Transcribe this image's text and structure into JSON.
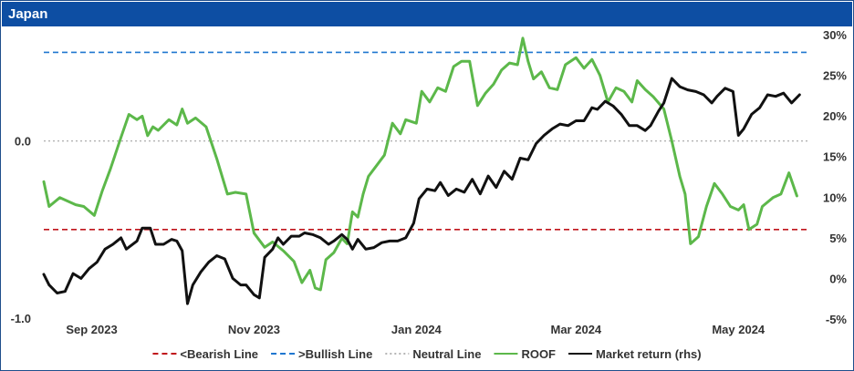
{
  "header": {
    "title": "Japan"
  },
  "colors": {
    "header_bg": "#0d4ea3",
    "bearish": "#c0141b",
    "bullish": "#1f77d0",
    "neutral": "#b5b5b5",
    "roof": "#5cb84a",
    "market": "#111111"
  },
  "chart_data": {
    "type": "line",
    "x_start": "2023-08-14",
    "x_end": "2024-05-28",
    "x_ticks": [
      {
        "label": "Sep 2023",
        "date": "2023-09-01"
      },
      {
        "label": "Nov 2023",
        "date": "2023-11-01"
      },
      {
        "label": "Jan 2024",
        "date": "2024-01-01"
      },
      {
        "label": "Mar 2024",
        "date": "2024-03-01"
      },
      {
        "label": "May 2024",
        "date": "2024-05-01"
      }
    ],
    "y_left": {
      "range": [
        -1.0,
        0.6
      ],
      "ticks": [
        "0.0",
        "-1.0"
      ],
      "tick_values": [
        0.0,
        -1.0
      ]
    },
    "y_right": {
      "range": [
        -5,
        30
      ],
      "ticks": [
        "30%",
        "25%",
        "20%",
        "15%",
        "10%",
        "5%",
        "0%",
        "-5%"
      ],
      "tick_values": [
        30,
        25,
        20,
        15,
        10,
        5,
        0,
        -5
      ]
    },
    "reference_lines": [
      {
        "name": "<Bearish Line",
        "value": -0.5,
        "axis": "left",
        "style": "dashed",
        "color": "#c0141b"
      },
      {
        "name": ">Bullish Line",
        "value": 0.5,
        "axis": "left",
        "style": "dashed",
        "color": "#1f77d0"
      },
      {
        "name": "Neutral Line",
        "value": 0.0,
        "axis": "left",
        "style": "dotted",
        "color": "#b5b5b5"
      }
    ],
    "series": [
      {
        "name": "ROOF",
        "axis": "left",
        "color": "#5cb84a",
        "points": [
          [
            "2023-08-14",
            -0.23
          ],
          [
            "2023-08-16",
            -0.37
          ],
          [
            "2023-08-20",
            -0.32
          ],
          [
            "2023-08-26",
            -0.36
          ],
          [
            "2023-08-29",
            -0.37
          ],
          [
            "2023-09-02",
            -0.42
          ],
          [
            "2023-09-05",
            -0.28
          ],
          [
            "2023-09-08",
            -0.16
          ],
          [
            "2023-09-12",
            0.02
          ],
          [
            "2023-09-15",
            0.15
          ],
          [
            "2023-09-18",
            0.12
          ],
          [
            "2023-09-20",
            0.14
          ],
          [
            "2023-09-22",
            0.03
          ],
          [
            "2023-09-24",
            0.08
          ],
          [
            "2023-09-26",
            0.06
          ],
          [
            "2023-09-30",
            0.12
          ],
          [
            "2023-10-03",
            0.09
          ],
          [
            "2023-10-05",
            0.18
          ],
          [
            "2023-10-07",
            0.1
          ],
          [
            "2023-10-10",
            0.13
          ],
          [
            "2023-10-14",
            0.08
          ],
          [
            "2023-10-18",
            -0.1
          ],
          [
            "2023-10-22",
            -0.3
          ],
          [
            "2023-10-25",
            -0.29
          ],
          [
            "2023-10-29",
            -0.3
          ],
          [
            "2023-11-01",
            -0.52
          ],
          [
            "2023-11-05",
            -0.6
          ],
          [
            "2023-11-08",
            -0.57
          ],
          [
            "2023-11-12",
            -0.62
          ],
          [
            "2023-11-16",
            -0.68
          ],
          [
            "2023-11-19",
            -0.8
          ],
          [
            "2023-11-22",
            -0.73
          ],
          [
            "2023-11-24",
            -0.83
          ],
          [
            "2023-11-26",
            -0.84
          ],
          [
            "2023-11-28",
            -0.67
          ],
          [
            "2023-12-01",
            -0.63
          ],
          [
            "2023-12-04",
            -0.55
          ],
          [
            "2023-12-06",
            -0.58
          ],
          [
            "2023-12-08",
            -0.4
          ],
          [
            "2023-12-10",
            -0.43
          ],
          [
            "2023-12-12",
            -0.3
          ],
          [
            "2023-12-14",
            -0.2
          ],
          [
            "2023-12-17",
            -0.14
          ],
          [
            "2023-12-20",
            -0.08
          ],
          [
            "2023-12-23",
            0.1
          ],
          [
            "2023-12-26",
            0.04
          ],
          [
            "2023-12-28",
            0.12
          ],
          [
            "2024-01-01",
            0.1
          ],
          [
            "2024-01-03",
            0.28
          ],
          [
            "2024-01-06",
            0.22
          ],
          [
            "2024-01-09",
            0.3
          ],
          [
            "2024-01-12",
            0.28
          ],
          [
            "2024-01-15",
            0.42
          ],
          [
            "2024-01-18",
            0.45
          ],
          [
            "2024-01-21",
            0.45
          ],
          [
            "2024-01-24",
            0.2
          ],
          [
            "2024-01-27",
            0.27
          ],
          [
            "2024-01-30",
            0.32
          ],
          [
            "2024-02-02",
            0.4
          ],
          [
            "2024-02-05",
            0.44
          ],
          [
            "2024-02-08",
            0.43
          ],
          [
            "2024-02-10",
            0.58
          ],
          [
            "2024-02-12",
            0.45
          ],
          [
            "2024-02-14",
            0.35
          ],
          [
            "2024-02-17",
            0.39
          ],
          [
            "2024-02-20",
            0.3
          ],
          [
            "2024-02-23",
            0.29
          ],
          [
            "2024-02-26",
            0.43
          ],
          [
            "2024-03-01",
            0.47
          ],
          [
            "2024-03-04",
            0.41
          ],
          [
            "2024-03-07",
            0.46
          ],
          [
            "2024-03-10",
            0.37
          ],
          [
            "2024-03-13",
            0.22
          ],
          [
            "2024-03-16",
            0.3
          ],
          [
            "2024-03-19",
            0.28
          ],
          [
            "2024-03-22",
            0.22
          ],
          [
            "2024-03-24",
            0.34
          ],
          [
            "2024-03-27",
            0.29
          ],
          [
            "2024-03-30",
            0.25
          ],
          [
            "2024-04-03",
            0.18
          ],
          [
            "2024-04-06",
            0.0
          ],
          [
            "2024-04-09",
            -0.2
          ],
          [
            "2024-04-11",
            -0.3
          ],
          [
            "2024-04-13",
            -0.58
          ],
          [
            "2024-04-16",
            -0.54
          ],
          [
            "2024-04-19",
            -0.37
          ],
          [
            "2024-04-22",
            -0.24
          ],
          [
            "2024-04-25",
            -0.3
          ],
          [
            "2024-04-28",
            -0.37
          ],
          [
            "2024-05-01",
            -0.39
          ],
          [
            "2024-05-03",
            -0.36
          ],
          [
            "2024-05-05",
            -0.5
          ],
          [
            "2024-05-08",
            -0.47
          ],
          [
            "2024-05-10",
            -0.37
          ],
          [
            "2024-05-14",
            -0.32
          ],
          [
            "2024-05-17",
            -0.3
          ],
          [
            "2024-05-20",
            -0.18
          ],
          [
            "2024-05-23",
            -0.31
          ]
        ]
      },
      {
        "name": "Market return (rhs)",
        "axis": "right",
        "color": "#111111",
        "points": [
          [
            "2023-08-14",
            0.5
          ],
          [
            "2023-08-16",
            -0.8
          ],
          [
            "2023-08-19",
            -1.8
          ],
          [
            "2023-08-22",
            -1.6
          ],
          [
            "2023-08-25",
            0.6
          ],
          [
            "2023-08-28",
            0.0
          ],
          [
            "2023-08-31",
            1.2
          ],
          [
            "2023-09-03",
            2.0
          ],
          [
            "2023-09-06",
            3.6
          ],
          [
            "2023-09-09",
            4.2
          ],
          [
            "2023-09-12",
            5.0
          ],
          [
            "2023-09-14",
            3.6
          ],
          [
            "2023-09-18",
            4.6
          ],
          [
            "2023-09-20",
            6.2
          ],
          [
            "2023-09-23",
            6.2
          ],
          [
            "2023-09-25",
            4.2
          ],
          [
            "2023-09-28",
            4.2
          ],
          [
            "2023-10-01",
            4.8
          ],
          [
            "2023-10-03",
            4.6
          ],
          [
            "2023-10-05",
            3.4
          ],
          [
            "2023-10-07",
            -3.1
          ],
          [
            "2023-10-09",
            -0.8
          ],
          [
            "2023-10-12",
            0.8
          ],
          [
            "2023-10-15",
            2.0
          ],
          [
            "2023-10-18",
            2.8
          ],
          [
            "2023-10-21",
            2.4
          ],
          [
            "2023-10-24",
            0.0
          ],
          [
            "2023-10-27",
            -0.8
          ],
          [
            "2023-10-29",
            -0.8
          ],
          [
            "2023-11-01",
            -2.0
          ],
          [
            "2023-11-03",
            -2.4
          ],
          [
            "2023-11-05",
            2.6
          ],
          [
            "2023-11-08",
            3.6
          ],
          [
            "2023-11-10",
            5.0
          ],
          [
            "2023-11-12",
            4.2
          ],
          [
            "2023-11-15",
            5.2
          ],
          [
            "2023-11-18",
            5.2
          ],
          [
            "2023-11-20",
            5.6
          ],
          [
            "2023-11-23",
            5.4
          ],
          [
            "2023-11-26",
            5.0
          ],
          [
            "2023-11-29",
            4.2
          ],
          [
            "2023-12-01",
            4.6
          ],
          [
            "2023-12-04",
            5.4
          ],
          [
            "2023-12-06",
            4.8
          ],
          [
            "2023-12-08",
            3.6
          ],
          [
            "2023-12-10",
            4.8
          ],
          [
            "2023-12-13",
            3.6
          ],
          [
            "2023-12-16",
            3.8
          ],
          [
            "2023-12-19",
            4.4
          ],
          [
            "2023-12-22",
            4.6
          ],
          [
            "2023-12-25",
            4.6
          ],
          [
            "2023-12-28",
            5.0
          ],
          [
            "2023-12-31",
            6.8
          ],
          [
            "2024-01-02",
            9.8
          ],
          [
            "2024-01-05",
            11.0
          ],
          [
            "2024-01-08",
            10.8
          ],
          [
            "2024-01-10",
            11.8
          ],
          [
            "2024-01-13",
            10.2
          ],
          [
            "2024-01-16",
            11.0
          ],
          [
            "2024-01-19",
            10.6
          ],
          [
            "2024-01-22",
            12.2
          ],
          [
            "2024-01-25",
            10.4
          ],
          [
            "2024-01-28",
            12.6
          ],
          [
            "2024-01-31",
            11.2
          ],
          [
            "2024-02-03",
            13.2
          ],
          [
            "2024-02-06",
            12.2
          ],
          [
            "2024-02-09",
            14.8
          ],
          [
            "2024-02-12",
            14.6
          ],
          [
            "2024-02-15",
            16.6
          ],
          [
            "2024-02-18",
            17.6
          ],
          [
            "2024-02-21",
            18.4
          ],
          [
            "2024-02-24",
            19.0
          ],
          [
            "2024-02-27",
            18.8
          ],
          [
            "2024-03-01",
            19.4
          ],
          [
            "2024-03-04",
            19.4
          ],
          [
            "2024-03-07",
            21.0
          ],
          [
            "2024-03-09",
            20.8
          ],
          [
            "2024-03-12",
            21.8
          ],
          [
            "2024-03-15",
            21.2
          ],
          [
            "2024-03-18",
            20.2
          ],
          [
            "2024-03-21",
            18.8
          ],
          [
            "2024-03-24",
            18.8
          ],
          [
            "2024-03-27",
            18.2
          ],
          [
            "2024-03-29",
            18.8
          ],
          [
            "2024-04-01",
            20.6
          ],
          [
            "2024-04-03",
            21.6
          ],
          [
            "2024-04-06",
            24.6
          ],
          [
            "2024-04-09",
            23.6
          ],
          [
            "2024-04-12",
            23.2
          ],
          [
            "2024-04-15",
            23.0
          ],
          [
            "2024-04-18",
            22.6
          ],
          [
            "2024-04-21",
            21.6
          ],
          [
            "2024-04-23",
            22.4
          ],
          [
            "2024-04-26",
            23.4
          ],
          [
            "2024-04-29",
            23.0
          ],
          [
            "2024-05-01",
            17.6
          ],
          [
            "2024-05-03",
            18.4
          ],
          [
            "2024-05-06",
            20.2
          ],
          [
            "2024-05-09",
            21.0
          ],
          [
            "2024-05-12",
            22.6
          ],
          [
            "2024-05-15",
            22.4
          ],
          [
            "2024-05-18",
            22.8
          ],
          [
            "2024-05-21",
            21.6
          ],
          [
            "2024-05-24",
            22.6
          ]
        ]
      }
    ],
    "legend": {
      "placement": "bottom",
      "items": [
        {
          "label": "<Bearish Line",
          "color": "#c0141b",
          "style": "dashed"
        },
        {
          "label": ">Bullish Line",
          "color": "#1f77d0",
          "style": "dashed"
        },
        {
          "label": "Neutral Line",
          "color": "#b5b5b5",
          "style": "dotted"
        },
        {
          "label": "ROOF",
          "color": "#5cb84a",
          "style": "solid"
        },
        {
          "label": "Market return (rhs)",
          "color": "#111111",
          "style": "solid"
        }
      ]
    }
  }
}
